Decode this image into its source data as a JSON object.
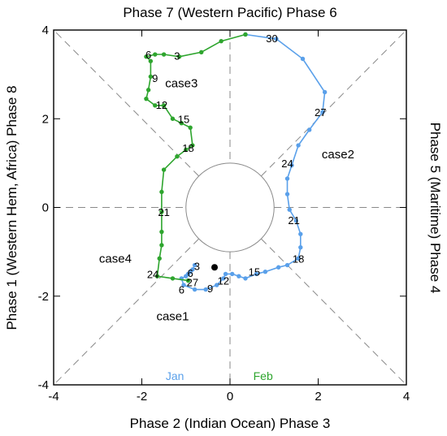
{
  "chart_data": {
    "type": "line",
    "axis_titles": {
      "top": "Phase 7 (Western Pacific) Phase 6",
      "bottom": "Phase 2 (Indian Ocean) Phase 3",
      "left": "Phase 1 (Western Hem, Africa) Phase 8",
      "right": "Phase 5 (Maritime) Phase 4"
    },
    "xlim": [
      -4,
      4
    ],
    "ylim": [
      -4,
      4
    ],
    "x_ticks": [
      "-4",
      "-2",
      "0",
      "2",
      "4"
    ],
    "y_ticks": [
      "-4",
      "-2",
      "0",
      "2",
      "4"
    ],
    "grid": "dashed phase-division lines and unit circle",
    "series": [
      {
        "name": "Jan",
        "color": "#5aa0ea",
        "points": [
          [
            -0.8,
            -1.3
          ],
          [
            -0.85,
            -1.4
          ],
          [
            -0.9,
            -1.45
          ],
          [
            -0.95,
            -1.5
          ],
          [
            -1.0,
            -1.55
          ],
          [
            -1.1,
            -1.6
          ],
          [
            -1.05,
            -1.75
          ],
          [
            -0.8,
            -1.85
          ],
          [
            -0.55,
            -1.85
          ],
          [
            -0.3,
            -1.75
          ],
          [
            -0.15,
            -1.6
          ],
          [
            -0.1,
            -1.5
          ],
          [
            0.05,
            -1.5
          ],
          [
            0.2,
            -1.55
          ],
          [
            0.35,
            -1.6
          ],
          [
            0.6,
            -1.5
          ],
          [
            0.8,
            -1.45
          ],
          [
            1.1,
            -1.35
          ],
          [
            1.3,
            -1.3
          ],
          [
            1.55,
            -1.15
          ],
          [
            1.6,
            -0.9
          ],
          [
            1.6,
            -0.6
          ],
          [
            1.5,
            -0.3
          ],
          [
            1.35,
            -0.05
          ],
          [
            1.3,
            0.3
          ],
          [
            1.3,
            0.65
          ],
          [
            1.4,
            0.95
          ],
          [
            1.55,
            1.4
          ],
          [
            1.8,
            1.75
          ],
          [
            2.1,
            2.15
          ],
          [
            2.15,
            2.6
          ],
          [
            1.65,
            3.35
          ],
          [
            1.05,
            3.8
          ],
          [
            0.35,
            3.9
          ]
        ]
      },
      {
        "name": "Feb",
        "color": "#2ea52e",
        "points": [
          [
            0.35,
            3.9
          ],
          [
            -0.2,
            3.75
          ],
          [
            -0.65,
            3.5
          ],
          [
            -1.15,
            3.4
          ],
          [
            -1.5,
            3.45
          ],
          [
            -1.7,
            3.45
          ],
          [
            -1.9,
            3.4
          ],
          [
            -1.8,
            3.3
          ],
          [
            -1.8,
            2.95
          ],
          [
            -1.85,
            2.65
          ],
          [
            -1.9,
            2.45
          ],
          [
            -1.7,
            2.3
          ],
          [
            -1.5,
            2.3
          ],
          [
            -1.3,
            2.0
          ],
          [
            -1.1,
            1.9
          ],
          [
            -0.9,
            1.8
          ],
          [
            -0.85,
            1.4
          ],
          [
            -1.0,
            1.3
          ],
          [
            -1.2,
            1.15
          ],
          [
            -1.5,
            0.85
          ],
          [
            -1.55,
            0.35
          ],
          [
            -1.55,
            -0.1
          ],
          [
            -1.55,
            -0.55
          ],
          [
            -1.55,
            -0.85
          ],
          [
            -1.6,
            -1.15
          ],
          [
            -1.65,
            -1.55
          ],
          [
            -1.3,
            -1.6
          ],
          [
            -0.95,
            -1.65
          ]
        ]
      }
    ],
    "start_point": [
      -0.35,
      -1.35
    ],
    "day_labels": [
      {
        "text": "3",
        "x": -0.75,
        "y": -1.32
      },
      {
        "text": "6",
        "x": -0.9,
        "y": -1.47
      },
      {
        "text": "27",
        "x": -0.85,
        "y": -1.68
      },
      {
        "text": "6",
        "x": -1.1,
        "y": -1.85
      },
      {
        "text": "9",
        "x": -0.45,
        "y": -1.82
      },
      {
        "text": "12",
        "x": -0.15,
        "y": -1.65
      },
      {
        "text": "15",
        "x": 0.55,
        "y": -1.45
      },
      {
        "text": "18",
        "x": 1.55,
        "y": -1.15
      },
      {
        "text": "21",
        "x": 1.45,
        "y": -0.28
      },
      {
        "text": "24",
        "x": 1.3,
        "y": 1.0
      },
      {
        "text": "27",
        "x": 2.05,
        "y": 2.15
      },
      {
        "text": "30",
        "x": 0.95,
        "y": 3.82
      },
      {
        "text": "3",
        "x": -1.2,
        "y": 3.42
      },
      {
        "text": "6",
        "x": -1.85,
        "y": 3.45
      },
      {
        "text": "9",
        "x": -1.7,
        "y": 2.92
      },
      {
        "text": "12",
        "x": -1.55,
        "y": 2.32
      },
      {
        "text": "15",
        "x": -1.05,
        "y": 2.0
      },
      {
        "text": "18",
        "x": -0.95,
        "y": 1.35
      },
      {
        "text": "21",
        "x": -1.5,
        "y": -0.1
      },
      {
        "text": "24",
        "x": -1.75,
        "y": -1.5
      }
    ],
    "case_labels": [
      {
        "text": "case1",
        "x": -1.3,
        "y": -2.45
      },
      {
        "text": "case2",
        "x": 2.45,
        "y": 1.2
      },
      {
        "text": "case3",
        "x": -1.1,
        "y": 2.8
      },
      {
        "text": "case4",
        "x": -2.6,
        "y": -1.15
      }
    ],
    "legend": [
      {
        "text": "Jan",
        "color": "#5aa0ea",
        "x": -1.25,
        "y": -3.8
      },
      {
        "text": "Feb",
        "color": "#2ea52e",
        "x": 0.75,
        "y": -3.8
      }
    ]
  }
}
